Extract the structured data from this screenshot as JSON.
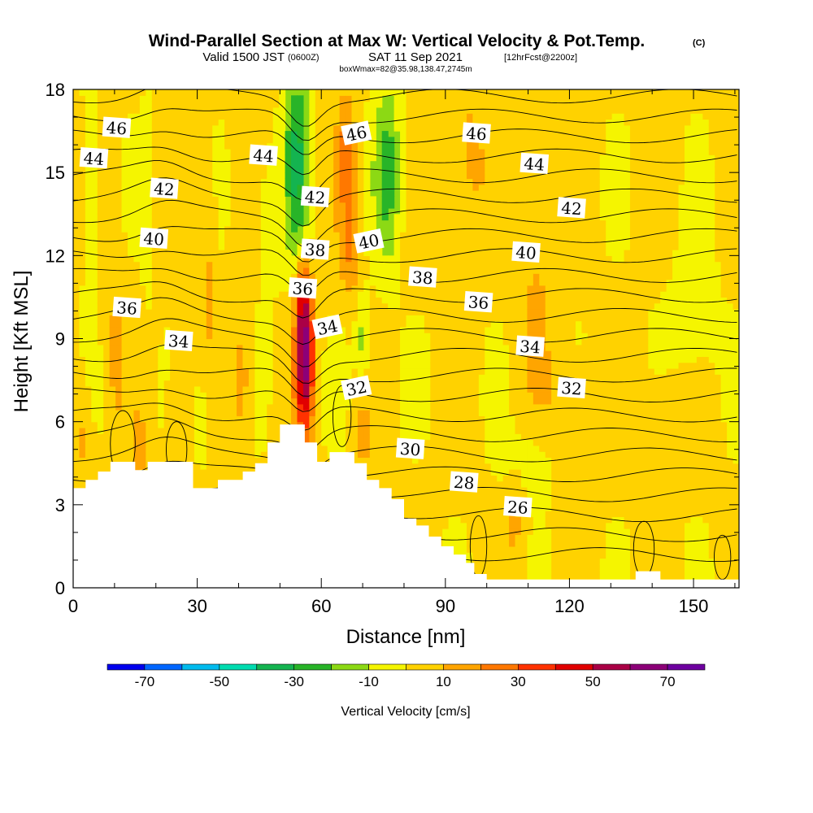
{
  "title": {
    "main": "Wind-Parallel Section at Max W: Vertical Velocity & Pot.Temp.",
    "copyright": "(C)",
    "valid_prefix": "Valid 1500 JST",
    "valid_utc": "(0600Z)",
    "valid_date": "SAT 11 Sep 2021",
    "forecast": "[12hrFcst@2200z]",
    "box_info": "boxWmax=82@35.98,138.47,2745m"
  },
  "chart_data": {
    "type": "heatmap",
    "xlabel": "Distance [nm]",
    "ylabel": "Height [Kft MSL]",
    "xlim": [
      0,
      161
    ],
    "ylim": [
      0,
      18
    ],
    "x_ticks": [
      "0",
      "30",
      "60",
      "90",
      "120",
      "150"
    ],
    "x_tick_values": [
      0,
      30,
      60,
      90,
      120,
      150
    ],
    "y_ticks": [
      "0",
      "3",
      "6",
      "9",
      "12",
      "15",
      "18"
    ],
    "y_tick_values": [
      0,
      3,
      6,
      9,
      12,
      15,
      18
    ],
    "colorbar": {
      "label": "Vertical Velocity [cm/s]",
      "bounds": [
        -80,
        -70,
        -60,
        -50,
        -40,
        -30,
        -20,
        -10,
        0,
        10,
        20,
        30,
        40,
        50,
        60,
        70,
        80
      ],
      "colors": [
        "#0000ee",
        "#0066ff",
        "#00bbee",
        "#00dcb0",
        "#14b450",
        "#28b428",
        "#8cd914",
        "#f5f500",
        "#ffd200",
        "#ffa500",
        "#ff7800",
        "#ff3200",
        "#e10000",
        "#aa0046",
        "#8c0078",
        "#6e00a0"
      ],
      "tick_labels": [
        "-70",
        "-50",
        "-30",
        "-10",
        "10",
        "30",
        "50",
        "70"
      ],
      "tick_values": [
        -70,
        -50,
        -30,
        -10,
        10,
        30,
        50,
        70
      ]
    },
    "theta_contour_labels": [
      {
        "text": "46",
        "x": 10.5,
        "y": 16.6
      },
      {
        "text": "44",
        "x": 5.0,
        "y": 15.5
      },
      {
        "text": "42",
        "x": 22.0,
        "y": 14.4
      },
      {
        "text": "40",
        "x": 19.5,
        "y": 12.6
      },
      {
        "text": "36",
        "x": 13.0,
        "y": 10.1
      },
      {
        "text": "34",
        "x": 25.5,
        "y": 8.9
      },
      {
        "text": "44",
        "x": 46.0,
        "y": 15.6
      },
      {
        "text": "42",
        "x": 58.5,
        "y": 14.1
      },
      {
        "text": "46",
        "x": 68.5,
        "y": 16.4
      },
      {
        "text": "38",
        "x": 58.5,
        "y": 12.2
      },
      {
        "text": "40",
        "x": 71.5,
        "y": 12.5
      },
      {
        "text": "36",
        "x": 55.5,
        "y": 10.8
      },
      {
        "text": "34",
        "x": 61.5,
        "y": 9.4
      },
      {
        "text": "32",
        "x": 68.5,
        "y": 7.2
      },
      {
        "text": "38",
        "x": 84.5,
        "y": 11.2
      },
      {
        "text": "36",
        "x": 98.0,
        "y": 10.3
      },
      {
        "text": "30",
        "x": 81.5,
        "y": 5.0
      },
      {
        "text": "28",
        "x": 94.5,
        "y": 3.8
      },
      {
        "text": "26",
        "x": 107.5,
        "y": 2.9
      },
      {
        "text": "46",
        "x": 97.5,
        "y": 16.4
      },
      {
        "text": "44",
        "x": 111.5,
        "y": 15.3
      },
      {
        "text": "42",
        "x": 120.5,
        "y": 13.7
      },
      {
        "text": "40",
        "x": 109.5,
        "y": 12.1
      },
      {
        "text": "34",
        "x": 110.5,
        "y": 8.7
      },
      {
        "text": "32",
        "x": 120.5,
        "y": 7.2
      }
    ],
    "terrain_tops": [
      [
        0,
        3.6
      ],
      [
        3,
        3.6
      ],
      [
        3,
        3.9
      ],
      [
        6,
        3.9
      ],
      [
        6,
        4.2
      ],
      [
        9,
        4.2
      ],
      [
        9,
        4.55
      ],
      [
        15,
        4.55
      ],
      [
        15,
        4.25
      ],
      [
        18,
        4.25
      ],
      [
        18,
        4.55
      ],
      [
        29,
        4.55
      ],
      [
        29,
        3.6
      ],
      [
        35,
        3.6
      ],
      [
        35,
        3.9
      ],
      [
        41,
        3.9
      ],
      [
        41,
        4.2
      ],
      [
        44,
        4.2
      ],
      [
        44,
        4.5
      ],
      [
        47,
        4.5
      ],
      [
        47,
        5.25
      ],
      [
        50,
        5.25
      ],
      [
        50,
        5.9
      ],
      [
        56,
        5.9
      ],
      [
        56,
        5.25
      ],
      [
        59,
        5.25
      ],
      [
        59,
        4.55
      ],
      [
        62,
        4.55
      ],
      [
        62,
        4.9
      ],
      [
        68,
        4.9
      ],
      [
        68,
        4.5
      ],
      [
        71,
        4.5
      ],
      [
        71,
        3.9
      ],
      [
        74,
        3.9
      ],
      [
        74,
        3.6
      ],
      [
        77,
        3.6
      ],
      [
        77,
        3.2
      ],
      [
        80,
        3.2
      ],
      [
        80,
        2.5
      ],
      [
        83,
        2.5
      ],
      [
        83,
        2.25
      ],
      [
        86,
        2.25
      ],
      [
        86,
        1.85
      ],
      [
        89,
        1.85
      ],
      [
        89,
        1.5
      ],
      [
        92,
        1.5
      ],
      [
        92,
        1.2
      ],
      [
        95,
        1.2
      ],
      [
        95,
        0.9
      ],
      [
        97,
        0.9
      ],
      [
        97,
        0.5
      ],
      [
        100,
        0.5
      ],
      [
        100,
        0.3
      ],
      [
        136,
        0.3
      ],
      [
        136,
        0.6
      ],
      [
        142,
        0.6
      ],
      [
        142,
        0.3
      ],
      [
        161,
        0.3
      ]
    ]
  }
}
